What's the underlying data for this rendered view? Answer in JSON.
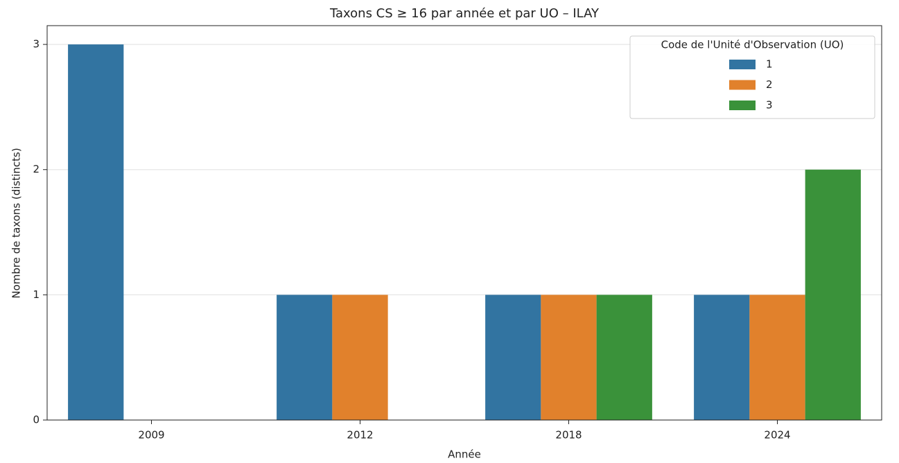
{
  "chart_data": {
    "type": "bar",
    "title": "Taxons CS ≥ 16 par année et par UO – ILAY",
    "x_label": "Année",
    "y_label": "Nombre de taxons (distincts)",
    "categories": [
      "2009",
      "2012",
      "2018",
      "2024"
    ],
    "series": [
      {
        "name": "1",
        "color": "#3274a1",
        "values": [
          3,
          1,
          1,
          1
        ]
      },
      {
        "name": "2",
        "color": "#e1812c",
        "values": [
          null,
          1,
          1,
          1
        ]
      },
      {
        "name": "3",
        "color": "#3a923a",
        "values": [
          null,
          null,
          1,
          2
        ]
      }
    ],
    "legend_title": "Code de l'Unité d'Observation (UO)",
    "legend": "upper right",
    "ylim": [
      0,
      3.15
    ],
    "yticks": [
      0,
      1,
      2,
      3
    ],
    "grid": true
  }
}
